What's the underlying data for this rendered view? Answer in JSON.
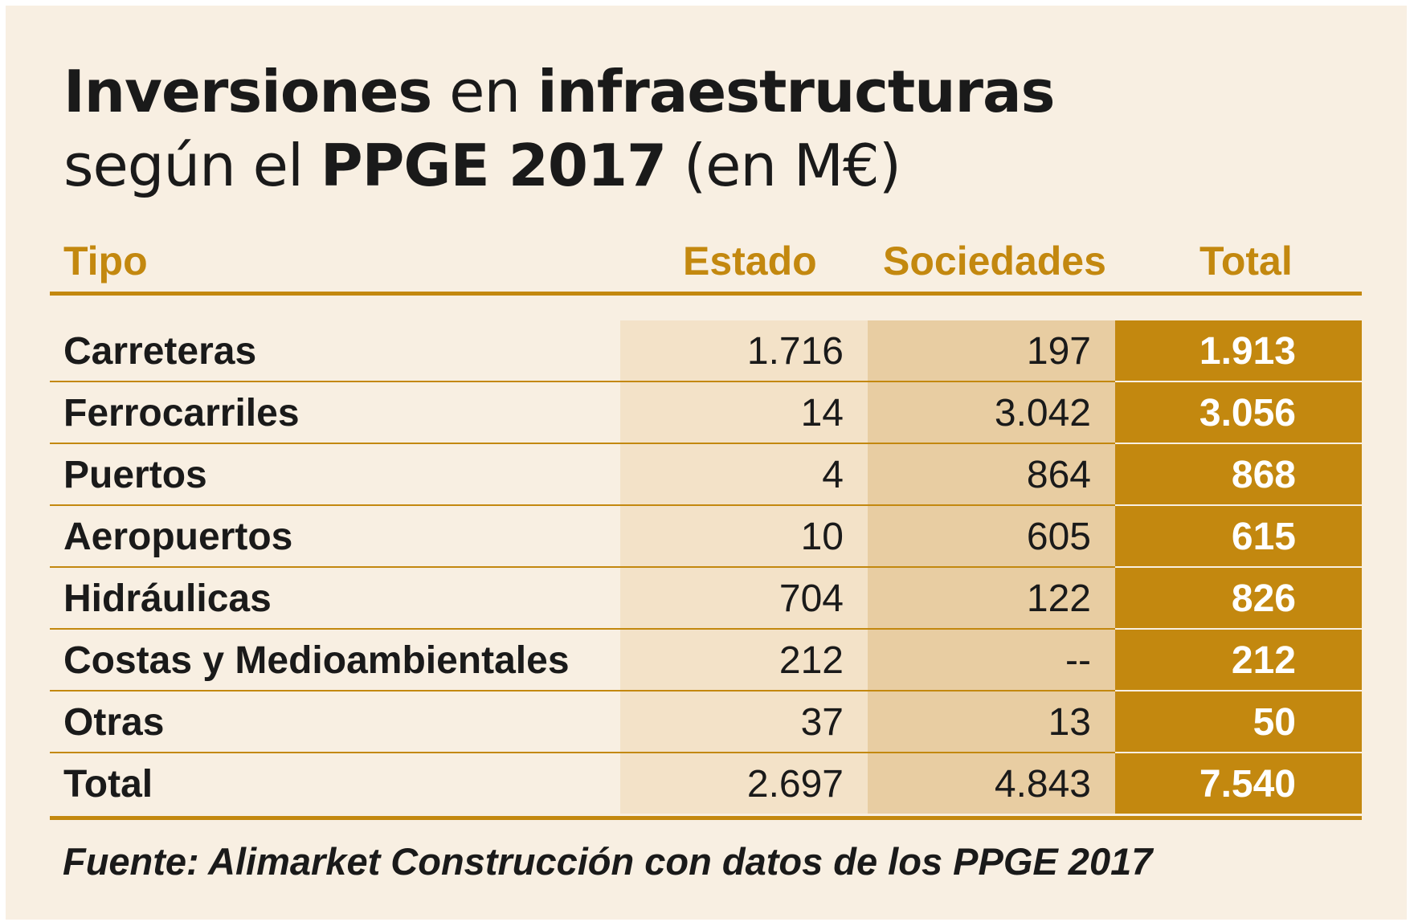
{
  "title": {
    "line1": [
      {
        "text": "Inversiones",
        "bold": true
      },
      {
        "text": " en ",
        "bold": false
      },
      {
        "text": "infraestructuras",
        "bold": true
      }
    ],
    "line2": [
      {
        "text": "según el ",
        "bold": false
      },
      {
        "text": "PPGE 2017",
        "bold": true
      },
      {
        "text": " (en M€)",
        "bold": false
      }
    ]
  },
  "colors": {
    "background": "#f8efe2",
    "accent": "#c3880f",
    "estado_col": "#f3e2c8",
    "sociedades_col": "#e8cda2"
  },
  "table": {
    "headers": [
      "Tipo",
      "Estado",
      "Sociedades",
      "Total"
    ],
    "rows": [
      [
        "Carreteras",
        "1.716",
        "197",
        "1.913"
      ],
      [
        "Ferrocarriles",
        "14",
        "3.042",
        "3.056"
      ],
      [
        "Puertos",
        "4",
        "864",
        "868"
      ],
      [
        "Aeropuertos",
        "10",
        "605",
        "615"
      ],
      [
        "Hidráulicas",
        "704",
        "122",
        "826"
      ],
      [
        "Costas y Medioambientales",
        "212",
        "--",
        "212"
      ],
      [
        "Otras",
        "37",
        "13",
        "50"
      ],
      [
        "Total",
        "2.697",
        "4.843",
        "7.540"
      ]
    ]
  },
  "footer": "Fuente: Alimarket Construcción con datos de los PPGE 2017"
}
